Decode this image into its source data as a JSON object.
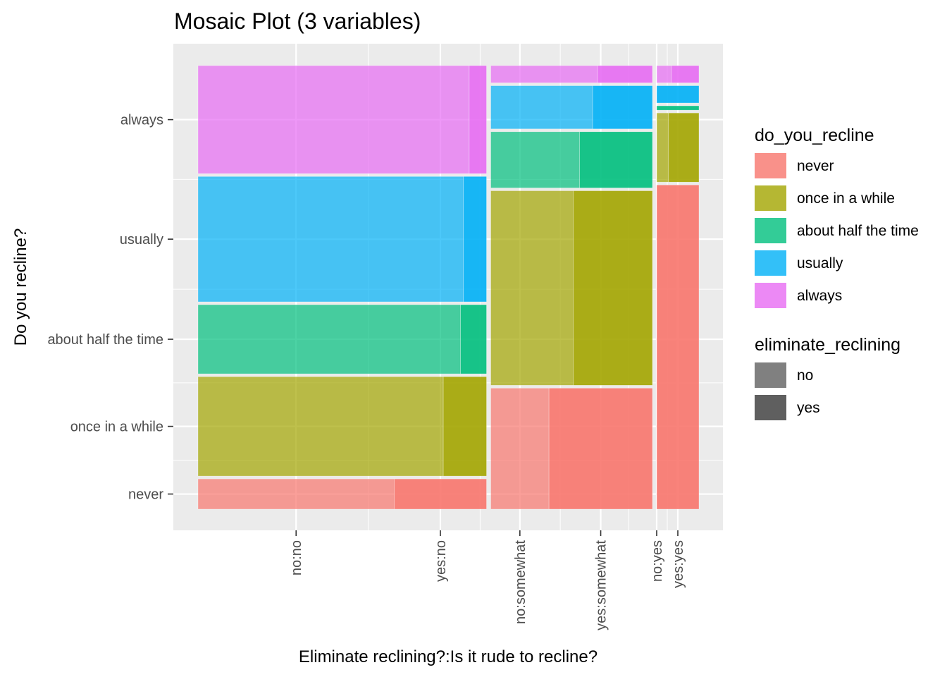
{
  "chart_data": {
    "type": "mosaic",
    "title": "Mosaic Plot (3 variables)",
    "xlabel": "Eliminate reclining?:Is it rude to recline?",
    "ylabel": "Do you recline?",
    "x_tick_labels": [
      "no:no",
      "yes:no",
      "no:somewhat",
      "yes:somewhat",
      "no:yes",
      "yes:yes"
    ],
    "y_tick_labels": [
      "never",
      "once in a while",
      "about half the time",
      "usually",
      "always"
    ],
    "rude_levels": [
      "no",
      "somewhat",
      "yes"
    ],
    "rude_widths": [
      0.58,
      0.325,
      0.085
    ],
    "recline_levels": [
      "never",
      "once in a while",
      "about half the time",
      "usually",
      "always"
    ],
    "columns": [
      {
        "rude": "no",
        "segments": [
          {
            "recline": "never",
            "share": 0.07,
            "eliminate_no": 0.68
          },
          {
            "recline": "once in a while",
            "share": 0.23,
            "eliminate_no": 0.85
          },
          {
            "recline": "about half the time",
            "share": 0.16,
            "eliminate_no": 0.91
          },
          {
            "recline": "usually",
            "share": 0.29,
            "eliminate_no": 0.92
          },
          {
            "recline": "always",
            "share": 0.25,
            "eliminate_no": 0.94
          }
        ]
      },
      {
        "rude": "somewhat",
        "segments": [
          {
            "recline": "never",
            "share": 0.28,
            "eliminate_no": 0.36
          },
          {
            "recline": "once in a while",
            "share": 0.45,
            "eliminate_no": 0.51
          },
          {
            "recline": "about half the time",
            "share": 0.13,
            "eliminate_no": 0.55
          },
          {
            "recline": "usually",
            "share": 0.1,
            "eliminate_no": 0.63
          },
          {
            "recline": "always",
            "share": 0.04,
            "eliminate_no": 0.66
          }
        ]
      },
      {
        "rude": "yes",
        "segments": [
          {
            "recline": "never",
            "share": 0.75,
            "eliminate_no": 0.0
          },
          {
            "recline": "once in a while",
            "share": 0.16,
            "eliminate_no": 0.28
          },
          {
            "recline": "about half the time",
            "share": 0.01,
            "eliminate_no": 0.0
          },
          {
            "recline": "usually",
            "share": 0.04,
            "eliminate_no": 0.0
          },
          {
            "recline": "always",
            "share": 0.04,
            "eliminate_no": 0.35
          }
        ]
      }
    ],
    "fill_colors": {
      "never": "#F8766D",
      "once in a while": "#A3A500",
      "about half the time": "#00BF7D",
      "usually": "#00B0F6",
      "always": "#E76BF3"
    },
    "alpha": {
      "no": 0.7,
      "yes": 0.9
    },
    "legend": [
      {
        "title": "do_you_recline",
        "entries": [
          {
            "label": "never",
            "color": "#F8766D"
          },
          {
            "label": "once in a while",
            "color": "#A3A500"
          },
          {
            "label": "about half the time",
            "color": "#00BF7D"
          },
          {
            "label": "usually",
            "color": "#00B0F6"
          },
          {
            "label": "always",
            "color": "#E76BF3"
          }
        ]
      },
      {
        "title": "eliminate_reclining",
        "entries": [
          {
            "label": "no",
            "color": "#808080"
          },
          {
            "label": "yes",
            "color": "#5F5F5F"
          }
        ]
      }
    ],
    "legend_position": "right",
    "grid": true,
    "panel_background": "#EBEBEB"
  }
}
